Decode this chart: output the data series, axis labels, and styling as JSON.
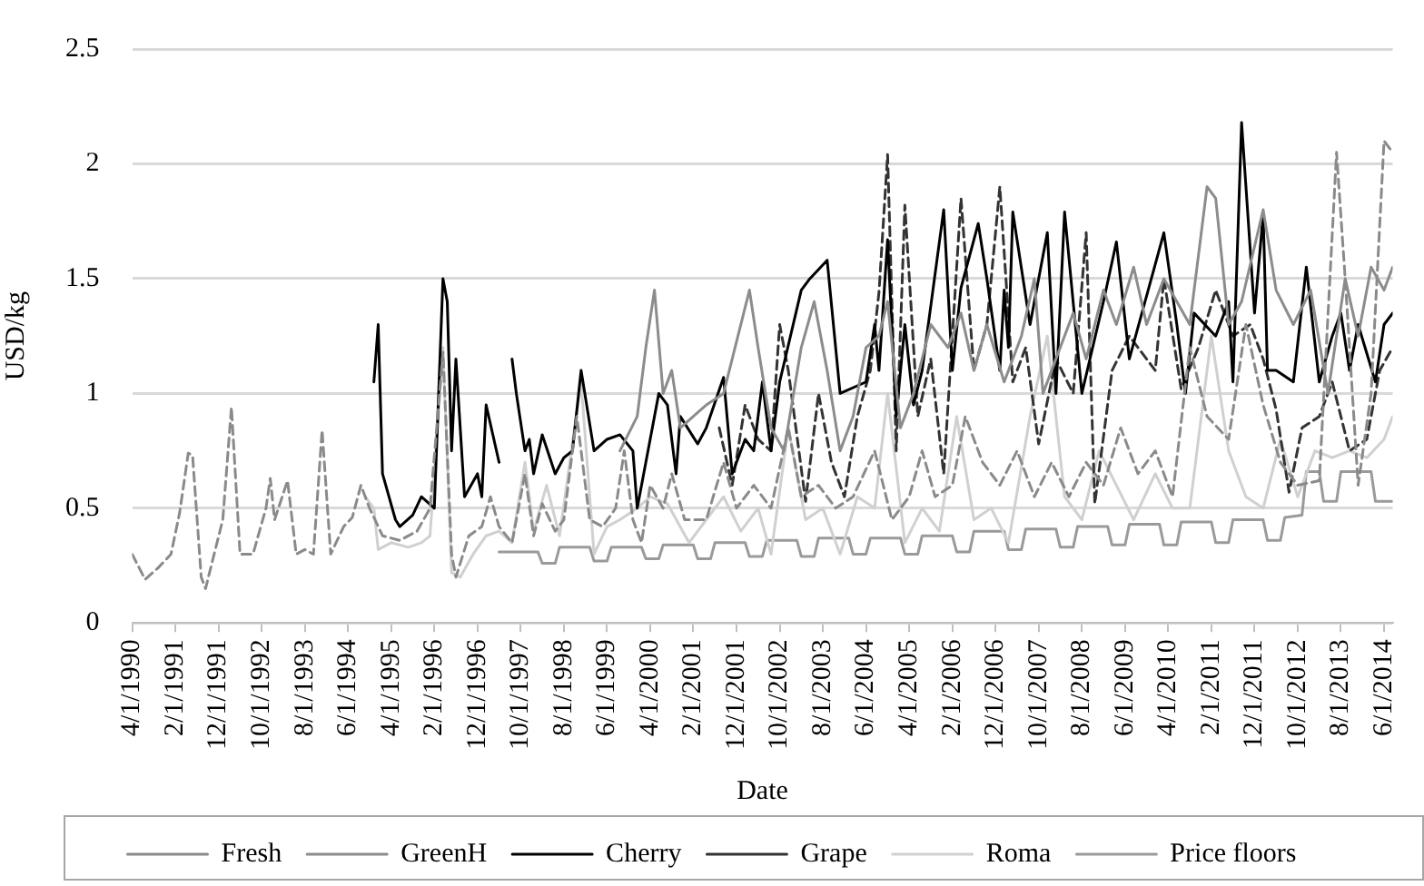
{
  "chart_data": {
    "type": "line",
    "xlabel": "Date",
    "ylabel": "USD/kg",
    "xlim": [
      "1990-04",
      "2014-08"
    ],
    "ylim": [
      0,
      2.5
    ],
    "yticks": [
      0,
      0.5,
      1,
      1.5,
      2,
      2.5
    ],
    "xticks": [
      {
        "value": "1990-04",
        "label": "4/1/1990"
      },
      {
        "value": "1991-02",
        "label": "2/1/1991"
      },
      {
        "value": "1991-12",
        "label": "12/1/1991"
      },
      {
        "value": "1992-10",
        "label": "10/1/1992"
      },
      {
        "value": "1993-08",
        "label": "8/1/1993"
      },
      {
        "value": "1994-06",
        "label": "6/1/1994"
      },
      {
        "value": "1995-04",
        "label": "4/1/1995"
      },
      {
        "value": "1996-02",
        "label": "2/1/1996"
      },
      {
        "value": "1996-12",
        "label": "12/1/1996"
      },
      {
        "value": "1997-10",
        "label": "10/1/1997"
      },
      {
        "value": "1998-08",
        "label": "8/1/1998"
      },
      {
        "value": "1999-06",
        "label": "6/1/1999"
      },
      {
        "value": "2000-04",
        "label": "4/1/2000"
      },
      {
        "value": "2001-02",
        "label": "2/1/2001"
      },
      {
        "value": "2001-12",
        "label": "12/1/2001"
      },
      {
        "value": "2002-10",
        "label": "10/1/2002"
      },
      {
        "value": "2003-08",
        "label": "8/1/2003"
      },
      {
        "value": "2004-06",
        "label": "6/1/2004"
      },
      {
        "value": "2005-04",
        "label": "4/1/2005"
      },
      {
        "value": "2006-02",
        "label": "2/1/2006"
      },
      {
        "value": "2006-12",
        "label": "12/1/2006"
      },
      {
        "value": "2007-10",
        "label": "10/1/2007"
      },
      {
        "value": "2008-08",
        "label": "8/1/2008"
      },
      {
        "value": "2009-06",
        "label": "6/1/2009"
      },
      {
        "value": "2010-04",
        "label": "4/1/2010"
      },
      {
        "value": "2011-02",
        "label": "2/1/2011"
      },
      {
        "value": "2011-12",
        "label": "12/1/2011"
      },
      {
        "value": "2012-10",
        "label": "10/1/2012"
      },
      {
        "value": "2013-08",
        "label": "8/1/2013"
      },
      {
        "value": "2014-06",
        "label": "6/1/2014"
      }
    ],
    "grid": "y",
    "legend": "bottom",
    "series": [
      {
        "name": "Fresh",
        "color": "#8a8a8a",
        "line_style": "dashed",
        "x": [
          "1990-04",
          "1990-07",
          "1990-10",
          "1991-01",
          "1991-03",
          "1991-05",
          "1991-06",
          "1991-08",
          "1991-09",
          "1991-11",
          "1992-01",
          "1992-03",
          "1992-05",
          "1992-08",
          "1992-11",
          "1992-12",
          "1993-01",
          "1993-04",
          "1993-06",
          "1993-08",
          "1993-10",
          "1993-12",
          "1994-02",
          "1994-05",
          "1994-07",
          "1994-09",
          "1994-11",
          "1995-02",
          "1995-06",
          "1995-10",
          "1996-01",
          "1996-04",
          "1996-06",
          "1996-07",
          "1996-10",
          "1997-01",
          "1997-03",
          "1997-05",
          "1997-08",
          "1997-11",
          "1998-01",
          "1998-03",
          "1998-06",
          "1998-08",
          "1998-11",
          "1999-02",
          "1999-05",
          "1999-08",
          "1999-10",
          "1999-12",
          "2000-02",
          "2000-04",
          "2000-07",
          "2000-09",
          "2000-12",
          "2001-05",
          "2001-09",
          "2001-12",
          "2002-04",
          "2002-08",
          "2002-12",
          "2003-03",
          "2003-07",
          "2003-11",
          "2004-03",
          "2004-08",
          "2004-12",
          "2005-04",
          "2005-07",
          "2005-10",
          "2006-02",
          "2006-05",
          "2006-09",
          "2007-01",
          "2007-05",
          "2007-09",
          "2008-01",
          "2008-05",
          "2008-09",
          "2009-01",
          "2009-05",
          "2009-09",
          "2010-01",
          "2010-05",
          "2010-09",
          "2011-01",
          "2011-06",
          "2011-10",
          "2012-02",
          "2012-06",
          "2012-10",
          "2013-03",
          "2013-07",
          "2013-09",
          "2013-12",
          "2014-03",
          "2014-06",
          "2014-08"
        ],
        "values": [
          0.3,
          0.19,
          0.24,
          0.3,
          0.48,
          0.74,
          0.73,
          0.2,
          0.15,
          0.3,
          0.45,
          0.94,
          0.3,
          0.3,
          0.5,
          0.63,
          0.45,
          0.62,
          0.3,
          0.32,
          0.3,
          0.84,
          0.3,
          0.42,
          0.46,
          0.6,
          0.5,
          0.38,
          0.36,
          0.4,
          0.5,
          1.18,
          0.3,
          0.2,
          0.38,
          0.42,
          0.55,
          0.42,
          0.35,
          0.65,
          0.38,
          0.52,
          0.4,
          0.45,
          0.9,
          0.45,
          0.42,
          0.5,
          0.75,
          0.45,
          0.35,
          0.6,
          0.5,
          0.65,
          0.45,
          0.45,
          0.7,
          0.5,
          0.6,
          0.5,
          0.85,
          0.55,
          0.6,
          0.5,
          0.55,
          0.75,
          0.45,
          0.55,
          0.75,
          0.55,
          0.6,
          0.9,
          0.7,
          0.6,
          0.75,
          0.55,
          0.7,
          0.55,
          0.7,
          0.6,
          0.85,
          0.65,
          0.75,
          0.55,
          1.2,
          0.9,
          0.8,
          1.3,
          0.95,
          0.7,
          0.6,
          0.62,
          2.05,
          1.5,
          0.6,
          1.0,
          2.1,
          2.05
        ]
      },
      {
        "name": "GreenH",
        "color": "#8c8c8c",
        "line_style": "solid",
        "x": [
          "1999-09",
          "2000-01",
          "2000-03",
          "2000-05",
          "2000-07",
          "2000-09",
          "2000-11",
          "2001-02",
          "2001-05",
          "2001-09",
          "2002-03",
          "2002-05",
          "2002-08",
          "2002-11",
          "2003-03",
          "2003-06",
          "2003-09",
          "2003-12",
          "2004-03",
          "2004-06",
          "2004-09",
          "2004-11",
          "2005-02",
          "2005-05",
          "2005-09",
          "2006-01",
          "2006-04",
          "2006-07",
          "2006-10",
          "2007-02",
          "2007-06",
          "2007-09",
          "2007-11",
          "2008-03",
          "2008-06",
          "2008-09",
          "2009-01",
          "2009-04",
          "2009-08",
          "2009-11",
          "2010-03",
          "2010-06",
          "2010-09",
          "2011-01",
          "2011-03",
          "2011-06",
          "2011-09",
          "2012-02",
          "2012-05",
          "2012-09",
          "2013-01",
          "2013-05",
          "2013-09",
          "2013-12",
          "2014-03",
          "2014-06",
          "2014-08"
        ],
        "values": [
          0.75,
          0.9,
          1.2,
          1.45,
          1.0,
          1.1,
          0.85,
          0.9,
          0.95,
          1.0,
          1.45,
          1.2,
          0.85,
          0.75,
          1.2,
          1.4,
          1.1,
          0.75,
          0.9,
          1.2,
          1.25,
          1.4,
          0.85,
          1.0,
          1.3,
          1.2,
          1.35,
          1.1,
          1.3,
          1.05,
          1.25,
          1.5,
          1.0,
          1.2,
          1.35,
          1.15,
          1.45,
          1.3,
          1.55,
          1.3,
          1.5,
          1.4,
          1.3,
          1.9,
          1.85,
          1.3,
          1.4,
          1.8,
          1.45,
          1.3,
          1.45,
          1.0,
          1.5,
          1.25,
          1.55,
          1.45,
          1.55
        ]
      },
      {
        "name": "Cherry",
        "color": "#000000",
        "line_style": "solid",
        "x": [
          "1994-12",
          "1995-01",
          "1995-02",
          "1995-05",
          "1995-06",
          "1995-09",
          "1995-11",
          "1996-02",
          "1996-04",
          "1996-05",
          "1996-06",
          "1996-07",
          "1996-09",
          "1996-12",
          "1997-01",
          "1997-02",
          "1997-05",
          "1997-06",
          "1997-08",
          "1997-09",
          "1997-11",
          "1997-12",
          "1998-01",
          "1998-03",
          "1998-06",
          "1998-08",
          "1998-10",
          "1998-12",
          "1999-03",
          "1999-06",
          "1999-09",
          "1999-12",
          "2000-01",
          "2000-04",
          "2000-06",
          "2000-08",
          "2000-10",
          "2000-11",
          "2001-03",
          "2001-05",
          "2001-09",
          "2001-11",
          "2002-02",
          "2002-04",
          "2002-06",
          "2002-08",
          "2002-10",
          "2003-03",
          "2003-05",
          "2003-09",
          "2003-12",
          "2004-06",
          "2004-08",
          "2004-09",
          "2004-11",
          "2005-01",
          "2005-03",
          "2005-05",
          "2005-07",
          "2005-12",
          "2006-02",
          "2006-04",
          "2006-08",
          "2006-10",
          "2007-01",
          "2007-02",
          "2007-03",
          "2007-04",
          "2007-08",
          "2007-12",
          "2008-02",
          "2008-04",
          "2008-08",
          "2009-01",
          "2009-04",
          "2009-07",
          "2010-03",
          "2010-06",
          "2010-08",
          "2010-10",
          "2011-03",
          "2011-06",
          "2011-07",
          "2011-09",
          "2011-12",
          "2012-02",
          "2012-03",
          "2012-05",
          "2012-09",
          "2012-12",
          "2013-03",
          "2013-06",
          "2013-08",
          "2013-10",
          "2013-12",
          "2014-04",
          "2014-06",
          "2014-08"
        ],
        "values": [
          1.05,
          1.3,
          0.65,
          0.45,
          0.42,
          0.47,
          0.55,
          0.5,
          1.5,
          1.4,
          0.75,
          1.15,
          0.55,
          0.65,
          0.55,
          0.95,
          0.7,
          null,
          1.15,
          1.0,
          0.75,
          0.8,
          0.65,
          0.82,
          0.65,
          0.72,
          0.75,
          1.1,
          0.75,
          0.8,
          0.82,
          0.75,
          0.5,
          0.8,
          1.0,
          0.95,
          0.65,
          0.9,
          0.78,
          0.85,
          1.07,
          0.65,
          0.8,
          0.75,
          1.05,
          0.75,
          1.05,
          1.45,
          1.5,
          1.58,
          1.0,
          1.05,
          1.3,
          1.1,
          1.67,
          0.9,
          1.3,
          0.95,
          1.1,
          1.8,
          1.1,
          1.46,
          1.74,
          1.5,
          1.1,
          1.45,
          1.2,
          1.79,
          1.3,
          1.7,
          1.0,
          1.79,
          1.0,
          1.4,
          1.66,
          1.15,
          1.7,
          1.3,
          1.0,
          1.35,
          1.25,
          1.4,
          1.05,
          2.18,
          1.35,
          1.78,
          1.1,
          1.1,
          1.05,
          1.55,
          1.05,
          1.25,
          1.35,
          1.1,
          1.3,
          1.05,
          1.3,
          1.35
        ]
      },
      {
        "name": "Grape",
        "color": "#333333",
        "line_style": "dashed",
        "x": [
          "2001-08",
          "2001-11",
          "2002-02",
          "2002-05",
          "2002-08",
          "2002-10",
          "2002-12",
          "2003-04",
          "2003-07",
          "2003-10",
          "2004-01",
          "2004-04",
          "2004-07",
          "2004-09",
          "2004-11",
          "2005-01",
          "2005-03",
          "2005-06",
          "2005-09",
          "2005-12",
          "2006-04",
          "2006-07",
          "2006-10",
          "2007-01",
          "2007-04",
          "2007-07",
          "2007-10",
          "2008-02",
          "2008-06",
          "2008-09",
          "2008-11",
          "2009-03",
          "2009-07",
          "2010-01",
          "2010-03",
          "2010-07",
          "2010-11",
          "2011-03",
          "2011-07",
          "2011-11",
          "2012-02",
          "2012-05",
          "2012-08",
          "2012-11",
          "2013-03",
          "2013-06",
          "2013-10",
          "2014-02",
          "2014-05",
          "2014-08"
        ],
        "values": [
          0.85,
          0.6,
          0.95,
          0.8,
          0.75,
          1.3,
          1.1,
          0.53,
          1.0,
          0.7,
          0.55,
          0.9,
          1.1,
          1.44,
          2.04,
          0.75,
          1.82,
          0.9,
          1.15,
          0.65,
          1.85,
          1.1,
          1.3,
          1.9,
          1.05,
          1.2,
          0.78,
          1.15,
          1.0,
          1.7,
          0.52,
          1.1,
          1.25,
          1.1,
          1.5,
          1.02,
          1.2,
          1.45,
          1.25,
          1.3,
          1.15,
          0.93,
          0.57,
          0.85,
          0.9,
          1.05,
          0.75,
          0.8,
          1.1,
          1.2
        ]
      },
      {
        "name": "Roma",
        "color": "#d0d0d0",
        "line_style": "solid",
        "x": [
          "1994-10",
          "1994-12",
          "1995-01",
          "1995-04",
          "1995-08",
          "1995-11",
          "1996-01",
          "1996-04",
          "1996-06",
          "1996-08",
          "1996-11",
          "1997-02",
          "1997-05",
          "1997-08",
          "1997-11",
          "1998-01",
          "1998-04",
          "1998-07",
          "1998-12",
          "1999-03",
          "1999-06",
          "1999-09",
          "2000-01",
          "2000-04",
          "2000-08",
          "2001-01",
          "2001-05",
          "2001-09",
          "2002-01",
          "2002-05",
          "2002-08",
          "2002-12",
          "2003-04",
          "2003-08",
          "2003-12",
          "2004-04",
          "2004-08",
          "2004-11",
          "2005-03",
          "2005-07",
          "2005-11",
          "2006-03",
          "2006-07",
          "2006-11",
          "2007-03",
          "2007-08",
          "2007-12",
          "2008-04",
          "2008-08",
          "2008-12",
          "2009-04",
          "2009-08",
          "2010-01",
          "2010-05",
          "2010-09",
          "2011-02",
          "2011-06",
          "2011-10",
          "2012-02",
          "2012-06",
          "2012-10",
          "2013-02",
          "2013-06",
          "2013-10",
          "2014-02",
          "2014-06",
          "2014-08"
        ],
        "values": [
          0.55,
          0.5,
          0.32,
          0.35,
          0.33,
          0.35,
          0.38,
          1.2,
          0.22,
          0.2,
          0.3,
          0.38,
          0.4,
          0.35,
          0.7,
          0.4,
          0.6,
          0.38,
          1.05,
          0.3,
          0.42,
          0.45,
          0.5,
          0.55,
          0.52,
          0.35,
          0.45,
          0.55,
          0.4,
          0.5,
          0.3,
          0.85,
          0.45,
          0.5,
          0.3,
          0.55,
          0.5,
          1.0,
          0.35,
          0.5,
          0.4,
          0.9,
          0.45,
          0.5,
          0.35,
          0.9,
          1.25,
          0.55,
          0.45,
          0.75,
          0.6,
          0.45,
          0.65,
          0.5,
          0.5,
          1.25,
          0.75,
          0.55,
          0.5,
          0.8,
          0.55,
          0.75,
          0.72,
          0.75,
          0.72,
          0.8,
          0.9
        ]
      },
      {
        "name": "Price floors",
        "color": "#9a9a9a",
        "line_style": "solid",
        "x": [
          "1997-05",
          "1998-02",
          "1998-03",
          "1998-06",
          "1998-07",
          "1999-02",
          "1999-03",
          "1999-06",
          "1999-07",
          "2000-02",
          "2000-03",
          "2000-06",
          "2000-07",
          "2001-02",
          "2001-03",
          "2001-06",
          "2001-07",
          "2002-02",
          "2002-03",
          "2002-06",
          "2002-07",
          "2003-02",
          "2003-03",
          "2003-06",
          "2003-07",
          "2004-02",
          "2004-03",
          "2004-06",
          "2004-07",
          "2005-02",
          "2005-03",
          "2005-06",
          "2005-07",
          "2006-02",
          "2006-03",
          "2006-06",
          "2006-07",
          "2007-02",
          "2007-03",
          "2007-06",
          "2007-07",
          "2008-02",
          "2008-03",
          "2008-06",
          "2008-07",
          "2009-02",
          "2009-03",
          "2009-06",
          "2009-07",
          "2010-02",
          "2010-03",
          "2010-06",
          "2010-07",
          "2011-02",
          "2011-03",
          "2011-06",
          "2011-07",
          "2012-02",
          "2012-03",
          "2012-06",
          "2012-07",
          "2012-11",
          "2012-12",
          "2013-03",
          "2013-04",
          "2013-07",
          "2013-08",
          "2014-03",
          "2014-04",
          "2014-08"
        ],
        "values": [
          0.31,
          0.31,
          0.26,
          0.26,
          0.33,
          0.33,
          0.27,
          0.27,
          0.33,
          0.33,
          0.28,
          0.28,
          0.34,
          0.34,
          0.28,
          0.28,
          0.35,
          0.35,
          0.29,
          0.29,
          0.36,
          0.36,
          0.29,
          0.29,
          0.37,
          0.37,
          0.3,
          0.3,
          0.37,
          0.37,
          0.3,
          0.3,
          0.38,
          0.38,
          0.31,
          0.31,
          0.4,
          0.4,
          0.32,
          0.32,
          0.41,
          0.41,
          0.33,
          0.33,
          0.42,
          0.42,
          0.34,
          0.34,
          0.43,
          0.43,
          0.34,
          0.34,
          0.44,
          0.44,
          0.35,
          0.35,
          0.45,
          0.45,
          0.36,
          0.36,
          0.46,
          0.47,
          0.66,
          0.66,
          0.53,
          0.53,
          0.66,
          0.66,
          0.53,
          0.53
        ]
      }
    ]
  }
}
